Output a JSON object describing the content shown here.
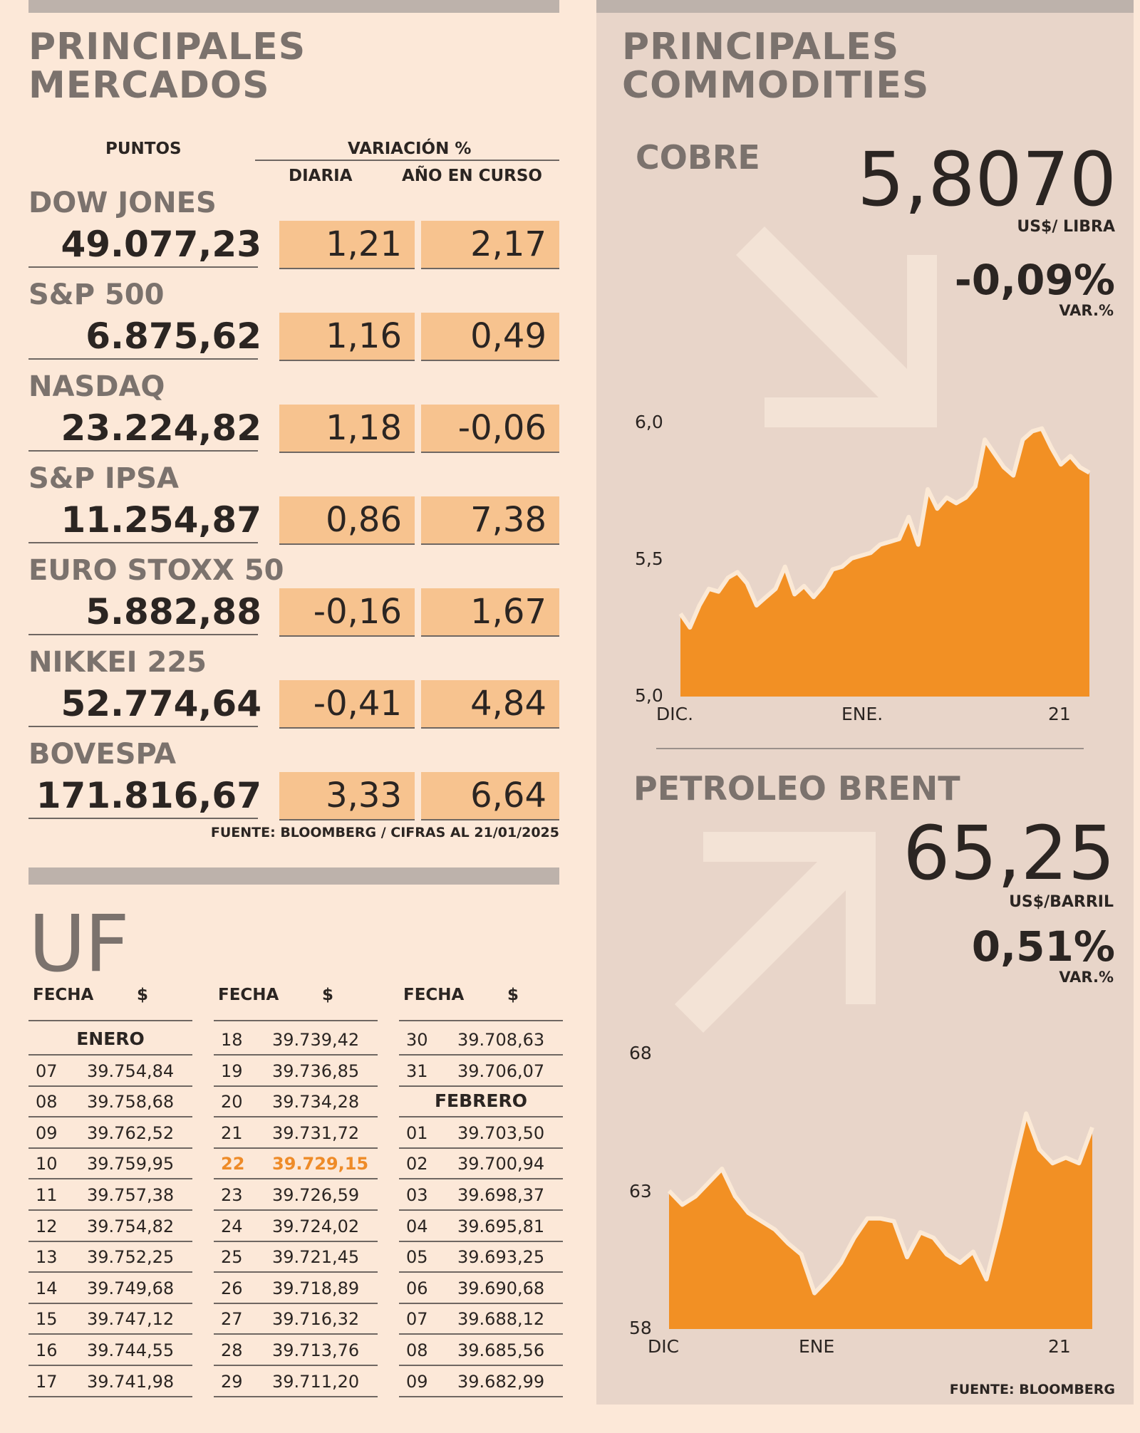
{
  "markets": {
    "title_line1": "PRINCIPALES",
    "title_line2": "MERCADOS",
    "col_points": "PUNTOS",
    "col_variation": "VARIACIÓN %",
    "col_daily": "DIARIA",
    "col_ytd": "AÑO EN CURSO",
    "rows": [
      {
        "name": "DOW JONES",
        "points": "49.077,23",
        "daily": "1,21",
        "ytd": "2,17"
      },
      {
        "name": "S&P 500",
        "points": "6.875,62",
        "daily": "1,16",
        "ytd": "0,49"
      },
      {
        "name": "NASDAQ",
        "points": "23.224,82",
        "daily": "1,18",
        "ytd": "-0,06"
      },
      {
        "name": "S&P IPSA",
        "points": "11.254,87",
        "daily": "0,86",
        "ytd": "7,38"
      },
      {
        "name": "EURO STOXX 50",
        "points": "5.882,88",
        "daily": "-0,16",
        "ytd": "1,67"
      },
      {
        "name": "NIKKEI 225",
        "points": "52.774,64",
        "daily": "-0,41",
        "ytd": "4,84"
      },
      {
        "name": "BOVESPA",
        "points": "171.816,67",
        "daily": "3,33",
        "ytd": "6,64"
      }
    ],
    "source": "FUENTE: BLOOMBERG  / CIFRAS AL 21/01/2025"
  },
  "uf": {
    "title": "UF",
    "col_date": "FECHA",
    "col_value": "$",
    "month_jan": "ENERO",
    "month_feb": "FEBRERO",
    "col1": [
      {
        "d": "07",
        "v": "39.754,84"
      },
      {
        "d": "08",
        "v": "39.758,68"
      },
      {
        "d": "09",
        "v": "39.762,52"
      },
      {
        "d": "10",
        "v": "39.759,95"
      },
      {
        "d": "11",
        "v": "39.757,38"
      },
      {
        "d": "12",
        "v": "39.754,82"
      },
      {
        "d": "13",
        "v": "39.752,25"
      },
      {
        "d": "14",
        "v": "39.749,68"
      },
      {
        "d": "15",
        "v": "39.747,12"
      },
      {
        "d": "16",
        "v": "39.744,55"
      },
      {
        "d": "17",
        "v": "39.741,98"
      }
    ],
    "col2": [
      {
        "d": "18",
        "v": "39.739,42"
      },
      {
        "d": "19",
        "v": "39.736,85"
      },
      {
        "d": "20",
        "v": "39.734,28"
      },
      {
        "d": "21",
        "v": "39.731,72"
      },
      {
        "d": "22",
        "v": "39.729,15",
        "highlight": true
      },
      {
        "d": "23",
        "v": "39.726,59"
      },
      {
        "d": "24",
        "v": "39.724,02"
      },
      {
        "d": "25",
        "v": "39.721,45"
      },
      {
        "d": "26",
        "v": "39.718,89"
      },
      {
        "d": "27",
        "v": "39.716,32"
      },
      {
        "d": "28",
        "v": "39.713,76"
      },
      {
        "d": "29",
        "v": "39.711,20"
      }
    ],
    "col3a": [
      {
        "d": "30",
        "v": "39.708,63"
      },
      {
        "d": "31",
        "v": "39.706,07"
      }
    ],
    "col3b": [
      {
        "d": "01",
        "v": "39.703,50"
      },
      {
        "d": "02",
        "v": "39.700,94"
      },
      {
        "d": "03",
        "v": "39.698,37"
      },
      {
        "d": "04",
        "v": "39.695,81"
      },
      {
        "d": "05",
        "v": "39.693,25"
      },
      {
        "d": "06",
        "v": "39.690,68"
      },
      {
        "d": "07",
        "v": "39.688,12"
      },
      {
        "d": "08",
        "v": "39.685,56"
      },
      {
        "d": "09",
        "v": "39.682,99"
      }
    ],
    "highlight_color": "#ee8b28"
  },
  "commodities": {
    "title_line1": "PRINCIPALES",
    "title_line2": "COMMODITIES",
    "copper": {
      "name": "COBRE",
      "price": "5,8070",
      "unit": "US$/ LIBRA",
      "change": "-0,09%",
      "change_label": "VAR.%",
      "trend_icon": "arrow-down-right-icon"
    },
    "brent": {
      "name": "PETROLEO BRENT",
      "price": "65,25",
      "unit": "US$/BARRIL",
      "change": "0,51%",
      "change_label": "VAR.%",
      "trend_icon": "arrow-up-right-icon"
    },
    "source": "FUENTE: BLOOMBERG"
  },
  "chart_data": [
    {
      "type": "area",
      "title": "",
      "ylim": [
        5.0,
        6.0
      ],
      "yticks": [
        "6,0",
        "5,5",
        "5,0"
      ],
      "xticks": [
        "DIC.",
        "ENE.",
        "21"
      ],
      "color": "#f29024",
      "values": [
        5.3,
        5.25,
        5.33,
        5.39,
        5.38,
        5.43,
        5.45,
        5.41,
        5.33,
        5.36,
        5.39,
        5.47,
        5.37,
        5.4,
        5.36,
        5.4,
        5.46,
        5.47,
        5.5,
        5.51,
        5.52,
        5.55,
        5.56,
        5.57,
        5.65,
        5.55,
        5.75,
        5.68,
        5.72,
        5.7,
        5.72,
        5.76,
        5.93,
        5.88,
        5.83,
        5.8,
        5.93,
        5.96,
        5.97,
        5.9,
        5.84,
        5.87,
        5.83,
        5.81
      ]
    },
    {
      "type": "area",
      "title": "",
      "ylim": [
        58,
        68
      ],
      "yticks": [
        "68",
        "63",
        "58"
      ],
      "xticks": [
        "DIC",
        "ENE",
        "21"
      ],
      "color": "#f29024",
      "values": [
        63.0,
        62.5,
        62.8,
        63.3,
        63.8,
        62.8,
        62.2,
        61.9,
        61.6,
        61.1,
        60.7,
        59.3,
        59.8,
        60.4,
        61.3,
        62.0,
        62.0,
        61.9,
        60.6,
        61.5,
        61.3,
        60.7,
        60.4,
        60.8,
        59.8,
        61.7,
        63.8,
        65.8,
        64.5,
        64.0,
        64.2,
        64.0,
        65.3
      ]
    }
  ]
}
